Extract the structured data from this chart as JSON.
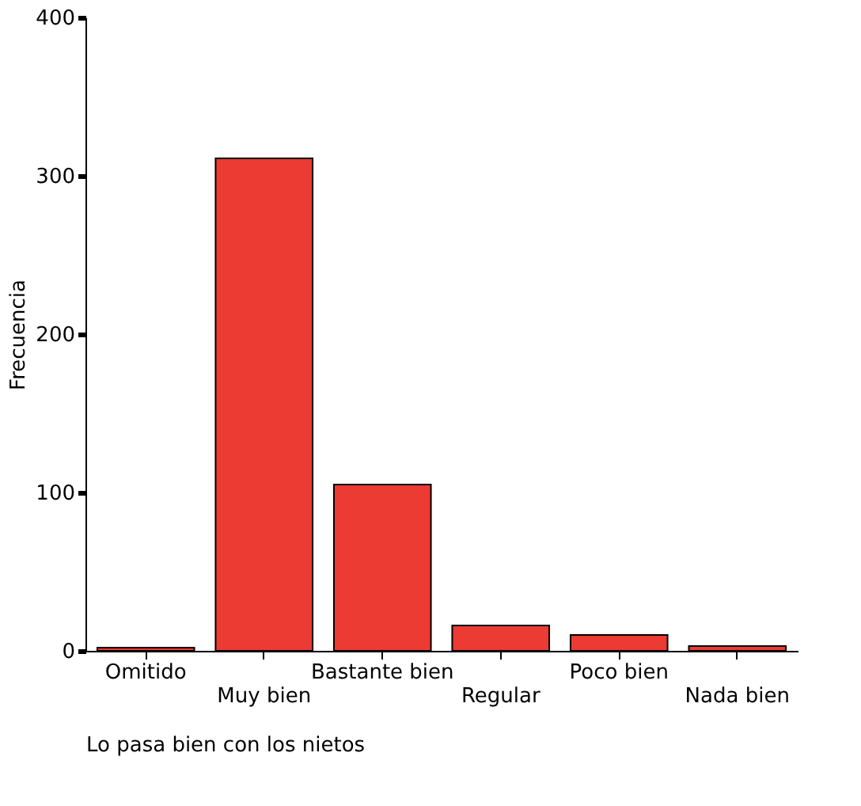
{
  "chart_data": {
    "type": "bar",
    "xlabel": "Lo pasa bien con los nietos",
    "ylabel": "Frecuencia",
    "categories": [
      "Omitido",
      "Muy bien",
      "Bastante bien",
      "Regular",
      "Poco bien",
      "Nada bien"
    ],
    "values": [
      2,
      311,
      105,
      16,
      10,
      3
    ],
    "color": "#ec3b32",
    "ylim": [
      0,
      400
    ],
    "yticks": [
      0,
      100,
      200,
      300,
      400
    ],
    "grid": false
  }
}
